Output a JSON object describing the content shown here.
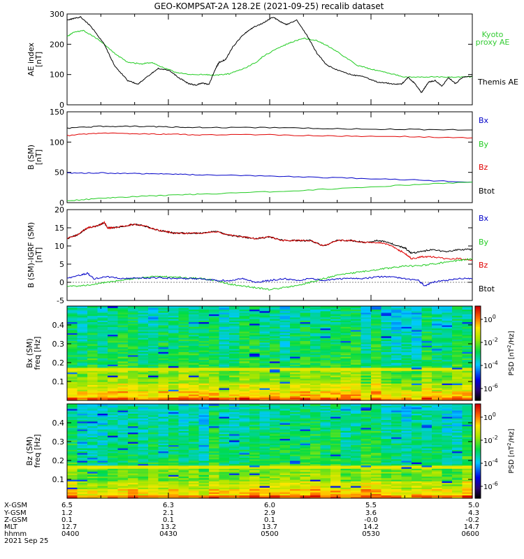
{
  "title": "GEO-KOMPSAT-2A 128.2E (2021-09-25) recalib dataset",
  "colors": {
    "black": "#000000",
    "red": "#e00000",
    "green": "#22cc22",
    "blue": "#0000c8",
    "kyoto_label": "#33cc33",
    "btot_label": "#000000"
  },
  "chart_data": [
    {
      "type": "line",
      "panel": "AE index",
      "ylabel": "AE index [nT]",
      "ylabel_top": "AE index",
      "ylabel_unit": "[nT]",
      "ylim": [
        0,
        300
      ],
      "yticks": [
        "0",
        "100",
        "200",
        "300"
      ],
      "series": [
        {
          "name": "Kyoto proxy AE",
          "legend_lines": [
            "Kyoto",
            "proxy AE"
          ],
          "color": "#22cc22",
          "x": [
            0,
            2,
            5,
            10,
            14,
            18,
            22,
            25,
            28,
            32,
            36,
            40,
            44,
            48,
            52,
            56,
            58,
            62,
            66,
            70,
            74,
            78,
            82,
            86,
            90,
            94,
            100,
            105,
            110,
            115,
            120
          ],
          "y": [
            225,
            240,
            245,
            210,
            170,
            140,
            135,
            140,
            125,
            108,
            100,
            100,
            98,
            102,
            118,
            140,
            160,
            185,
            205,
            220,
            212,
            190,
            160,
            130,
            118,
            108,
            92,
            92,
            92,
            92,
            92
          ]
        },
        {
          "name": "Themis AE",
          "color": "#000000",
          "x": [
            0,
            2,
            4,
            7,
            11,
            14,
            18,
            21,
            24,
            27,
            30,
            33,
            36,
            38,
            40,
            42,
            44,
            45,
            47,
            49,
            52,
            55,
            58,
            61,
            63,
            65,
            68,
            71,
            74,
            77,
            80,
            84,
            88,
            92,
            96,
            99,
            101,
            103,
            105,
            107,
            109,
            111,
            113,
            115,
            117,
            120
          ],
          "y": [
            280,
            285,
            290,
            260,
            200,
            130,
            80,
            68,
            95,
            120,
            115,
            90,
            70,
            65,
            72,
            66,
            120,
            140,
            150,
            190,
            230,
            255,
            270,
            290,
            275,
            265,
            280,
            230,
            170,
            130,
            115,
            100,
            92,
            75,
            70,
            68,
            90,
            70,
            40,
            75,
            80,
            62,
            90,
            70,
            90,
            95
          ]
        }
      ]
    },
    {
      "type": "line",
      "panel": "B (SM)",
      "ylabel": "B (SM) [nT]",
      "ylabel_top": "B (SM)",
      "ylabel_unit": "[nT]",
      "ylim": [
        0,
        150
      ],
      "yticks": [
        "0",
        "50",
        "100",
        "150"
      ],
      "legend": [
        "Bx",
        "By",
        "Bz",
        "Btot"
      ],
      "series": [
        {
          "name": "Btot",
          "color": "#000000",
          "x": [
            0,
            10,
            20,
            30,
            40,
            60,
            80,
            100,
            120
          ],
          "y": [
            123,
            126,
            126,
            125,
            124,
            124,
            122,
            121,
            120
          ]
        },
        {
          "name": "Bz",
          "color": "#e00000",
          "x": [
            0,
            10,
            20,
            30,
            40,
            60,
            80,
            100,
            120
          ],
          "y": [
            111,
            115,
            114,
            113,
            112,
            112,
            110,
            109,
            107
          ]
        },
        {
          "name": "Bx",
          "color": "#0000c8",
          "x": [
            0,
            10,
            20,
            30,
            40,
            60,
            80,
            100,
            120
          ],
          "y": [
            49,
            49,
            48,
            47,
            46,
            44,
            41,
            38,
            34
          ]
        },
        {
          "name": "By",
          "color": "#22cc22",
          "x": [
            0,
            10,
            20,
            30,
            40,
            60,
            80,
            100,
            120
          ],
          "y": [
            3,
            7,
            10,
            12,
            14,
            18,
            23,
            29,
            34
          ]
        }
      ]
    },
    {
      "type": "line",
      "panel": "B (SM)-IGRF (SM)",
      "ylabel": "B (SM)-IGRF (SM) [nT]",
      "ylabel_top": "B (SM)-IGRF (SM)",
      "ylabel_unit": "[nT]",
      "ylim": [
        -5,
        20
      ],
      "yticks": [
        "-5",
        "0",
        "5",
        "10",
        "15",
        "20"
      ],
      "legend": [
        "Bx",
        "By",
        "Bz",
        "Btot"
      ],
      "series": [
        {
          "name": "Btot",
          "color": "#000000",
          "x": [
            0,
            3,
            6,
            9,
            11,
            12,
            14,
            17,
            20,
            23,
            26,
            29,
            32,
            36,
            40,
            44,
            48,
            52,
            56,
            60,
            64,
            68,
            72,
            76,
            80,
            84,
            88,
            92,
            95,
            98,
            100,
            102,
            105,
            108,
            112,
            116,
            120
          ],
          "y": [
            12,
            13,
            15,
            15.5,
            16.5,
            15,
            15,
            15.5,
            16,
            15.5,
            14.5,
            14,
            13.5,
            13.5,
            13.5,
            14,
            13,
            12.5,
            12,
            12.5,
            11.5,
            11.5,
            11.5,
            10,
            11.5,
            11.5,
            11,
            11.5,
            11,
            10,
            9.5,
            8,
            8.5,
            9,
            8.5,
            9,
            9
          ]
        },
        {
          "name": "Bz",
          "color": "#e00000",
          "x": [
            0,
            3,
            6,
            9,
            11,
            12,
            14,
            17,
            20,
            23,
            26,
            29,
            32,
            36,
            40,
            44,
            48,
            52,
            56,
            60,
            64,
            68,
            72,
            76,
            80,
            84,
            88,
            92,
            95,
            98,
            100,
            102,
            105,
            108,
            112,
            116,
            120
          ],
          "y": [
            12,
            13,
            15,
            15.5,
            16.5,
            15,
            15,
            15.5,
            16,
            15.5,
            14.5,
            14,
            13.5,
            13.5,
            13.5,
            14,
            13,
            12.5,
            12,
            12.5,
            11.5,
            11.5,
            11.5,
            10,
            11.5,
            11.5,
            11,
            11,
            10.5,
            9,
            8,
            6.5,
            7,
            7,
            6.5,
            6.5,
            6
          ]
        },
        {
          "name": "By",
          "color": "#22cc22",
          "x": [
            0,
            4,
            8,
            12,
            16,
            20,
            24,
            28,
            32,
            36,
            40,
            44,
            48,
            52,
            56,
            60,
            64,
            68,
            72,
            76,
            80,
            84,
            88,
            92,
            96,
            100,
            104,
            108,
            112,
            116,
            120
          ],
          "y": [
            -1,
            -1,
            -0.5,
            0,
            0.5,
            1,
            1.5,
            1.5,
            1.5,
            1.2,
            1,
            0.5,
            -0.5,
            -1,
            -1.5,
            -2,
            -1.5,
            -1,
            0,
            1,
            2,
            2.5,
            3,
            3.5,
            4,
            4.5,
            4.5,
            5,
            5.5,
            6,
            6.5
          ]
        },
        {
          "name": "Bx",
          "color": "#0000c8",
          "x": [
            0,
            4,
            6,
            8,
            12,
            16,
            20,
            24,
            28,
            32,
            36,
            40,
            44,
            48,
            52,
            56,
            60,
            64,
            68,
            72,
            76,
            80,
            84,
            88,
            92,
            96,
            100,
            104,
            106,
            108,
            112,
            116,
            120
          ],
          "y": [
            1,
            2,
            2.5,
            1,
            1.5,
            1,
            1.2,
            1.2,
            1.3,
            1,
            1,
            1,
            0.5,
            0.5,
            1,
            0,
            0.5,
            1,
            0.5,
            1,
            0.5,
            1,
            1,
            1,
            1.5,
            1.5,
            1,
            0.5,
            -1,
            0,
            0.5,
            1,
            1
          ]
        }
      ]
    },
    {
      "type": "heatmap",
      "panel": "Bx (SM)",
      "ylabel": "Bx (SM) freq [Hz]",
      "ylabel_top": "Bx (SM)",
      "ylabel_unit": "freq [Hz]",
      "ylim": [
        0,
        0.5
      ],
      "yticks": [
        "0.1",
        "0.2",
        "0.3",
        "0.4"
      ],
      "zlabel": "PSD [nT²/Hz]",
      "zlabel_main": "PSD [nT",
      "zlabel_sup": "2",
      "zlabel_tail": "/Hz]",
      "z_scale": "log",
      "zticks": [
        {
          "base": "10",
          "exp": "0"
        },
        {
          "base": "10",
          "exp": "-2"
        },
        {
          "base": "10",
          "exp": "-4"
        },
        {
          "base": "10",
          "exp": "-6"
        }
      ]
    },
    {
      "type": "heatmap",
      "panel": "Bz (SM)",
      "ylabel": "Bz (SM) freq [Hz]",
      "ylabel_top": "Bz (SM)",
      "ylabel_unit": "freq [Hz]",
      "ylim": [
        0,
        0.5
      ],
      "yticks": [
        "0.1",
        "0.2",
        "0.3",
        "0.4"
      ],
      "zlabel": "PSD [nT²/Hz]",
      "zlabel_main": "PSD [nT",
      "zlabel_sup": "2",
      "zlabel_tail": "/Hz]",
      "z_scale": "log",
      "zticks": [
        {
          "base": "10",
          "exp": "0"
        },
        {
          "base": "10",
          "exp": "-2"
        },
        {
          "base": "10",
          "exp": "-4"
        },
        {
          "base": "10",
          "exp": "-6"
        }
      ]
    }
  ],
  "x_axis": {
    "unit": "minutes from 0400",
    "range": [
      0,
      120
    ],
    "tick_minutes": [
      0,
      30,
      60,
      90,
      120
    ],
    "rows": [
      {
        "label": "X-GSM",
        "values": [
          "6.5",
          "6.3",
          "6.0",
          "5.5",
          "5.0"
        ]
      },
      {
        "label": "Y-GSM",
        "values": [
          "1.2",
          "2.1",
          "2.9",
          "3.6",
          "4.3"
        ]
      },
      {
        "label": "Z-GSM",
        "values": [
          "0.1",
          "0.1",
          "0.1",
          "-0.0",
          "-0.2"
        ]
      },
      {
        "label": "MLT",
        "values": [
          "12.7",
          "13.2",
          "13.7",
          "14.2",
          "14.7"
        ]
      },
      {
        "label": "hhmm",
        "values": [
          "0400",
          "0430",
          "0500",
          "0530",
          "0600"
        ]
      }
    ],
    "date": "2021 Sep 25"
  }
}
